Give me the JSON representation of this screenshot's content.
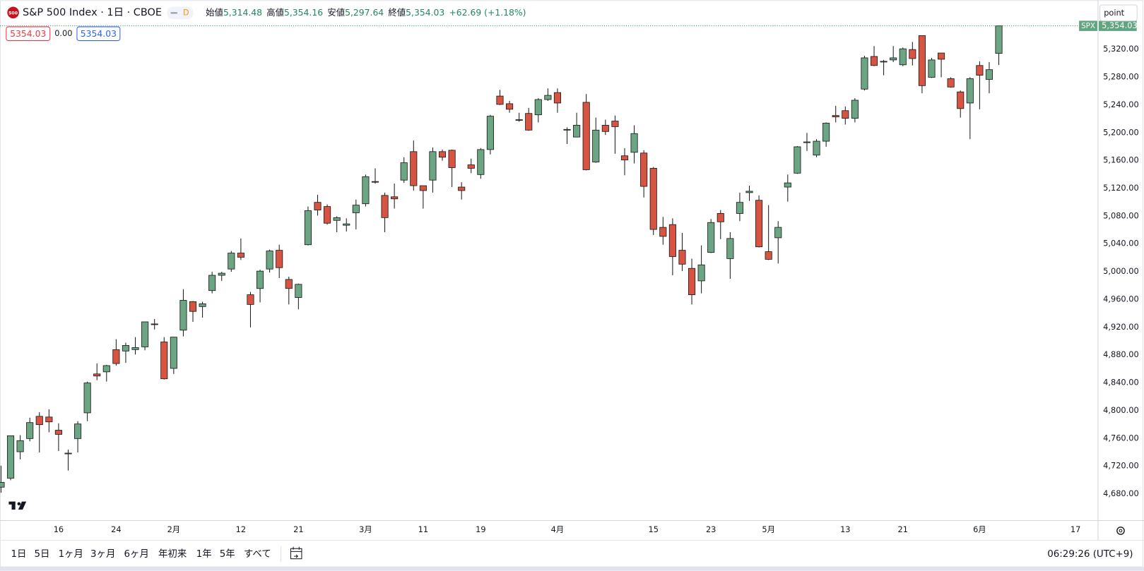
{
  "header": {
    "icon": "500",
    "title": "S&P 500 Index · 1日 · CBOE",
    "badge": "D",
    "ohlc": [
      {
        "label": "始値",
        "value": "5,314.48"
      },
      {
        "label": "高値",
        "value": "5,354.16"
      },
      {
        "label": "安値",
        "value": "5,297.64"
      },
      {
        "label": "終値",
        "value": "5,354.03"
      }
    ],
    "change": "+62.69 (+1.18%)"
  },
  "legend": {
    "bid": "5354.03",
    "spread": "0.00",
    "ask": "5354.03"
  },
  "unit_menu": "point",
  "toolbar": {
    "ranges": [
      "1日",
      "5日",
      "1ヶ月",
      "3ヶ月",
      "6ヶ月",
      "年初来",
      "1年",
      "5年",
      "すべて"
    ],
    "clock": "06:29:26 (UTC+9)"
  },
  "chart_data": {
    "type": "candlestick",
    "categories": [
      null,
      null,
      null,
      null,
      null,
      null,
      "16",
      null,
      null,
      null,
      null,
      null,
      "24",
      null,
      null,
      null,
      null,
      null,
      "2月",
      null,
      null,
      null,
      null,
      null,
      null,
      "12",
      null,
      null,
      null,
      null,
      null,
      "21",
      null,
      null,
      null,
      null,
      null,
      null,
      "3月",
      null,
      null,
      null,
      null,
      null,
      "11",
      null,
      null,
      null,
      null,
      null,
      "19",
      null,
      null,
      null,
      null,
      null,
      null,
      null,
      "4月",
      null,
      null,
      null,
      null,
      null,
      null,
      null,
      null,
      null,
      "15",
      null,
      null,
      null,
      null,
      null,
      "23",
      null,
      null,
      null,
      null,
      null,
      "5月",
      null,
      null,
      null,
      null,
      null,
      null,
      null,
      "13",
      null,
      null,
      null,
      null,
      null,
      "21",
      null,
      null,
      null,
      null,
      null,
      null,
      null,
      "6月",
      null,
      null,
      null,
      null,
      null,
      null,
      null,
      null,
      null,
      "17",
      null,
      null
    ],
    "open": [
      4690,
      4703,
      4741,
      4760,
      4792,
      4791,
      4772,
      4739,
      4760,
      4797,
      4853,
      4856,
      4888,
      4886,
      4888,
      4892,
      4925,
      4899,
      4861,
      4916,
      4957,
      4950,
      4973,
      4995,
      5004,
      5027,
      4967,
      4976,
      5004,
      5031,
      4989,
      4963,
      5039,
      5100,
      5094,
      5074,
      5067,
      5085,
      5098,
      5130,
      5110,
      5108,
      5132,
      5173,
      5124,
      5132,
      5173,
      5175,
      5122,
      5154,
      5140,
      5176,
      5253,
      5242,
      5219,
      5228,
      5226,
      5248,
      5258,
      5204,
      5194,
      5244,
      5158,
      5211,
      5217,
      5167,
      5172,
      5171,
      5149,
      5064,
      5068,
      5031,
      5005,
      4987,
      5028,
      5084,
      5019,
      5084,
      5114,
      5103,
      5029,
      5049,
      5122,
      5142,
      5187,
      5168,
      5188,
      5225,
      5232,
      5221,
      5263,
      5310,
      5303,
      5305,
      5298,
      5320,
      5340,
      5280,
      5315,
      5278,
      5259,
      5243,
      5297,
      5277,
      5314.48,
      null,
      null,
      null,
      null,
      null,
      null,
      null,
      null,
      null,
      null
    ],
    "high": [
      4721,
      4764,
      4765,
      4790,
      4798,
      4802,
      4782,
      4744,
      4785,
      4842,
      4868,
      4866,
      4903,
      4898,
      4906,
      4928,
      4932,
      4906,
      4906,
      4975,
      4958,
      4957,
      5000,
      5000,
      5030,
      5048,
      4971,
      5003,
      5032,
      5039,
      4993,
      4983,
      5094,
      5111,
      5097,
      5080,
      5077,
      5104,
      5140,
      5149,
      5114,
      5127,
      5165,
      5189,
      5124,
      5179,
      5176,
      5176,
      5129,
      5163,
      5178,
      5226,
      5262,
      5246,
      5229,
      5236,
      5250,
      5264,
      5264,
      5208,
      5229,
      5256,
      5222,
      5219,
      5225,
      5178,
      5211,
      5175,
      5151,
      5079,
      5077,
      5056,
      5019,
      5038,
      5076,
      5089,
      5057,
      5114,
      5124,
      5110,
      5096,
      5073,
      5140,
      5181,
      5200,
      5191,
      5215,
      5239,
      5238,
      5250,
      5311,
      5325,
      5305,
      5325,
      5323,
      5331,
      5340,
      5308,
      5315,
      5280,
      5261,
      5280,
      5303,
      5302,
      5354.16,
      null,
      null,
      null,
      null,
      null,
      null,
      null,
      null,
      null,
      null
    ],
    "low": [
      4682,
      4700,
      4730,
      4756,
      4740,
      4769,
      4742,
      4714,
      4740,
      4785,
      4844,
      4842,
      4865,
      4869,
      4881,
      4887,
      4917,
      4845,
      4853,
      4907,
      4928,
      4934,
      4969,
      4987,
      5000,
      5017,
      4920,
      4956,
      4999,
      4991,
      4953,
      4946,
      5038,
      5081,
      5068,
      5057,
      5058,
      5061,
      5094,
      5127,
      5057,
      5091,
      5128,
      5117,
      5091,
      5114,
      5160,
      5122,
      5104,
      5142,
      5134,
      5169,
      5240,
      5229,
      5216,
      5203,
      5215,
      5246,
      5229,
      5184,
      5194,
      5146,
      5157,
      5197,
      5170,
      5139,
      5156,
      5107,
      5053,
      5039,
      4995,
      5001,
      4953,
      4969,
      5027,
      5047,
      4990,
      5073,
      5102,
      5035,
      5017,
      5012,
      5101,
      5141,
      5174,
      5165,
      5180,
      5215,
      5212,
      5215,
      5261,
      5296,
      5283,
      5302,
      5296,
      5297,
      5257,
      5279,
      5280,
      5265,
      5222,
      5191,
      5234,
      5257,
      5297.64,
      null,
      null,
      null,
      null,
      null,
      null,
      null,
      null,
      null,
      null
    ],
    "close": [
      4697,
      4764,
      4757,
      4783,
      4780,
      4784,
      4766,
      4739,
      4781,
      4840,
      4850,
      4865,
      4868,
      4894,
      4891,
      4928,
      4924,
      4846,
      4906,
      4959,
      4943,
      4954,
      4995,
      4998,
      5027,
      5021,
      4953,
      5001,
      5030,
      5006,
      4976,
      4982,
      5088,
      5089,
      5070,
      5078,
      5069,
      5096,
      5137,
      5129,
      5078,
      5105,
      5157,
      5124,
      5117,
      5173,
      5165,
      5150,
      5117,
      5149,
      5176,
      5224,
      5241,
      5234,
      5218,
      5204,
      5248,
      5254,
      5243,
      5205,
      5211,
      5147,
      5204,
      5202,
      5209,
      5161,
      5199,
      5123,
      5061,
      5051,
      5022,
      5011,
      4967,
      5010,
      5071,
      5072,
      5048,
      5100,
      5116,
      5036,
      5018,
      5064,
      5128,
      5180,
      5187,
      5188,
      5214,
      5223,
      5221,
      5247,
      5308,
      5297,
      5303,
      5308,
      5321,
      5307,
      5268,
      5305,
      5306,
      5266,
      5235,
      5278,
      5283,
      5291,
      5354.03,
      null,
      null,
      null,
      null,
      null,
      null,
      null,
      null,
      null,
      null
    ],
    "ylim": [
      4642,
      5391
    ],
    "yticks": [
      {
        "value": 4680,
        "label": "4,680.00"
      },
      {
        "value": 4720,
        "label": "4,720.00"
      },
      {
        "value": 4760,
        "label": "4,760.00"
      },
      {
        "value": 4800,
        "label": "4,800.00"
      },
      {
        "value": 4840,
        "label": "4,840.00"
      },
      {
        "value": 4880,
        "label": "4,880.00"
      },
      {
        "value": 4920,
        "label": "4,920.00"
      },
      {
        "value": 4960,
        "label": "4,960.00"
      },
      {
        "value": 5000,
        "label": "5,000.00"
      },
      {
        "value": 5040,
        "label": "5,040.00"
      },
      {
        "value": 5080,
        "label": "5,080.00"
      },
      {
        "value": 5120,
        "label": "5,120.00"
      },
      {
        "value": 5160,
        "label": "5,160.00"
      },
      {
        "value": 5200,
        "label": "5,200.00"
      },
      {
        "value": 5240,
        "label": "5,240.00"
      },
      {
        "value": 5280,
        "label": "5,280.00"
      },
      {
        "value": 5320,
        "label": "5,320.00"
      }
    ],
    "grid": false,
    "up_color": "#6ba583",
    "down_color": "#d75442",
    "symbol": "SPX",
    "last_price": {
      "value": 5354.03,
      "label": "5,354.03"
    }
  }
}
